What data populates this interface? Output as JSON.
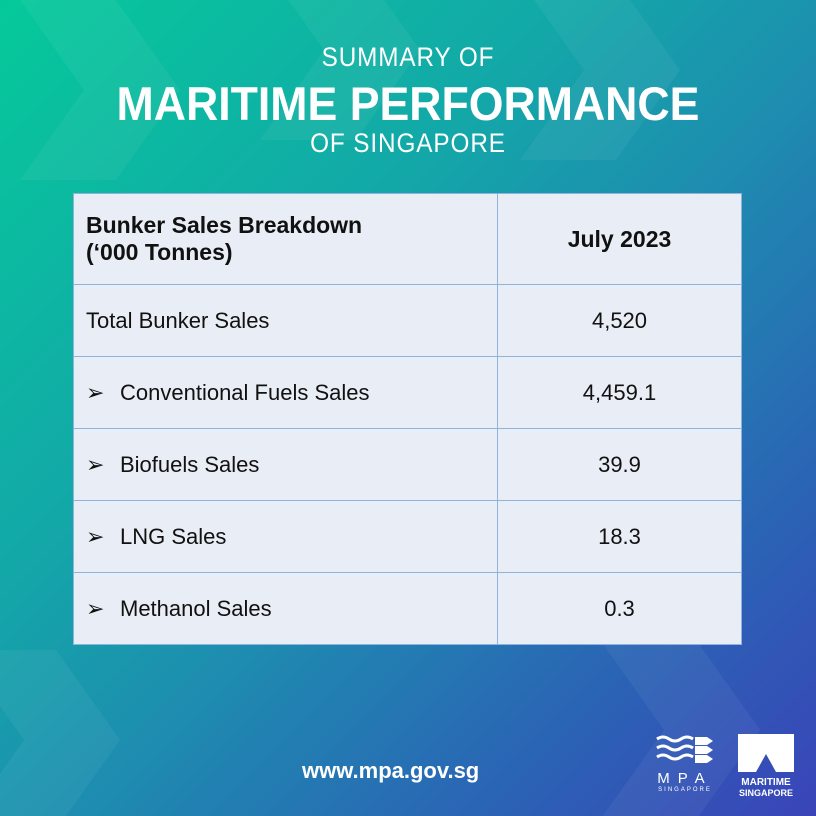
{
  "header": {
    "line1": "SUMMARY OF",
    "line2": "MARITIME PERFORMANCE",
    "line3": "OF SINGAPORE"
  },
  "table": {
    "col1_header_line1": "Bunker Sales Breakdown",
    "col1_header_line2": "(‘000 Tonnes)",
    "col2_header": "July 2023",
    "rows": [
      {
        "label": "Total Bunker Sales",
        "value": "4,520",
        "bullet": ""
      },
      {
        "label": "Conventional Fuels Sales",
        "value": "4,459.1",
        "bullet": "➢"
      },
      {
        "label": "Biofuels Sales",
        "value": "39.9",
        "bullet": "➢"
      },
      {
        "label": "LNG Sales",
        "value": "18.3",
        "bullet": "➢"
      },
      {
        "label": "Methanol Sales",
        "value": "0.3",
        "bullet": "➢"
      }
    ]
  },
  "footer": {
    "url": "www.mpa.gov.sg",
    "mpa_logo": "MPA",
    "mpa_sub": "SINGAPORE",
    "ms_logo_line1": "MARITIME",
    "ms_logo_line2": "SINGAPORE"
  }
}
